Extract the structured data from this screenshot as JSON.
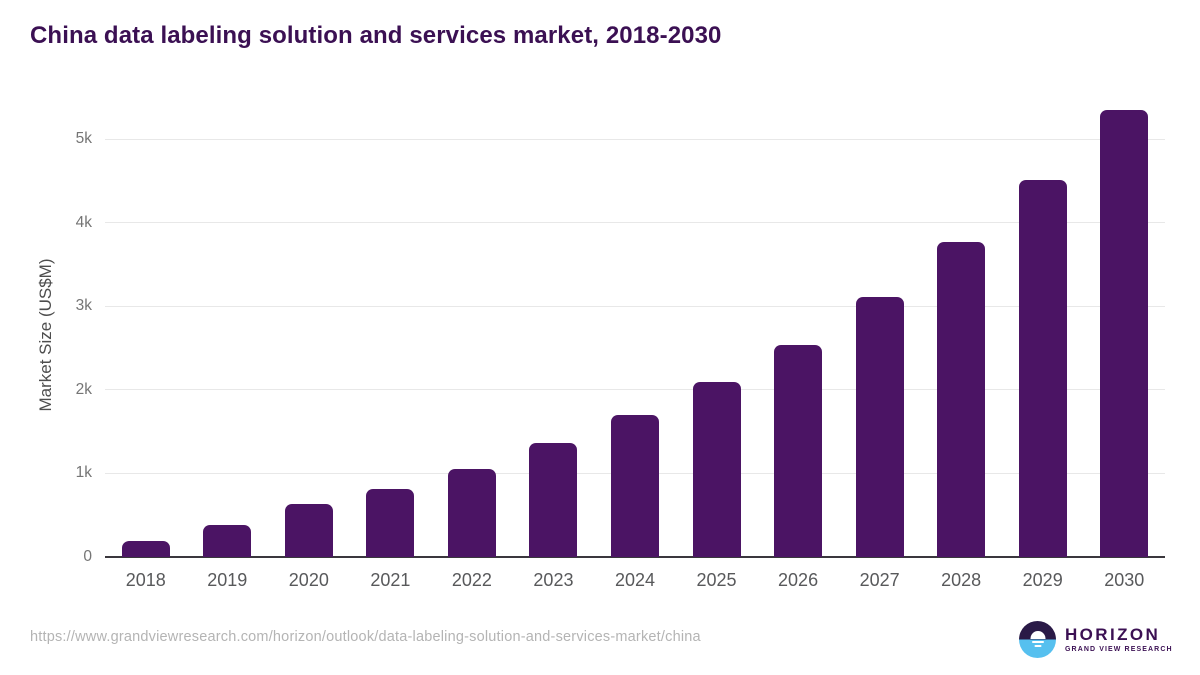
{
  "page": {
    "title": "China data labeling solution and services market, 2018-2030",
    "source_url": "https://www.grandviewresearch.com/horizon/outlook/data-labeling-solution-and-services-market/china"
  },
  "logo": {
    "name": "HORIZON",
    "subtitle": "GRAND VIEW RESEARCH"
  },
  "colors": {
    "bar": "#4b1464",
    "title_text": "#3b1053",
    "axis_line": "#3a373d",
    "gridline": "#e8e8e8",
    "y_tick_label": "#757575",
    "x_tick_label": "#58595b",
    "url_text": "#b4b4b4",
    "logo_dark": "#2a1a47",
    "logo_blue": "#56c0ef"
  },
  "chart_data": {
    "type": "bar",
    "title": "China data labeling solution and services market, 2018-2030",
    "xlabel": "",
    "ylabel": "Market Size (US$M)",
    "unit": "US$M",
    "categories": [
      "2018",
      "2019",
      "2020",
      "2021",
      "2022",
      "2023",
      "2024",
      "2025",
      "2026",
      "2027",
      "2028",
      "2029",
      "2030"
    ],
    "values": [
      190,
      385,
      640,
      820,
      1055,
      1360,
      1700,
      2100,
      2540,
      3115,
      3775,
      4515,
      5345
    ],
    "ylim": [
      0,
      5470
    ],
    "yticks": [
      {
        "label": "0",
        "value": 0
      },
      {
        "label": "1k",
        "value": 1000
      },
      {
        "label": "2k",
        "value": 2000
      },
      {
        "label": "3k",
        "value": 3000
      },
      {
        "label": "4k",
        "value": 4000
      },
      {
        "label": "5k",
        "value": 5000
      }
    ],
    "grid": "horizontal",
    "legend": "none",
    "bar_color": "#4b1464"
  }
}
